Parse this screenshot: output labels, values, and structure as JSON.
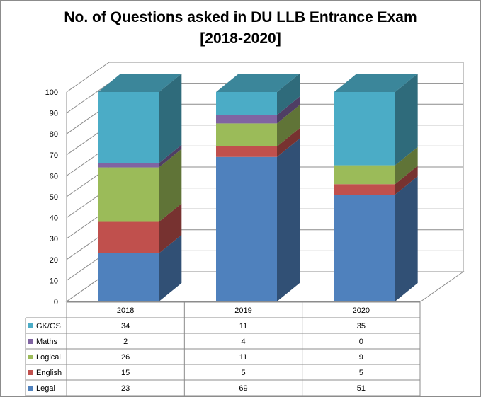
{
  "chart_data": {
    "type": "bar",
    "stacked": true,
    "three_d": true,
    "title_lines": [
      "No. of Questions asked in DU LLB Entrance Exam",
      "[2018-2020]"
    ],
    "categories": [
      "2018",
      "2019",
      "2020"
    ],
    "yticks": [
      "0",
      "10",
      "20",
      "30",
      "40",
      "50",
      "60",
      "70",
      "80",
      "90",
      "100"
    ],
    "ylim": [
      0,
      100
    ],
    "grid": true,
    "legend": "data-table",
    "series": [
      {
        "name": "Legal",
        "values": [
          23,
          69,
          51
        ],
        "color": "#4f81bd",
        "display": [
          "23",
          "69",
          "51"
        ]
      },
      {
        "name": "English",
        "values": [
          15,
          5,
          5
        ],
        "color": "#c0504d",
        "display": [
          "15",
          "5",
          "5"
        ]
      },
      {
        "name": "Logical",
        "values": [
          26,
          11,
          9
        ],
        "color": "#9bbb59",
        "display": [
          "26",
          "11",
          "9"
        ]
      },
      {
        "name": "Maths",
        "values": [
          2,
          4,
          0
        ],
        "color": "#8064a2",
        "display": [
          "2",
          "4",
          "0"
        ]
      },
      {
        "name": "GK/GS",
        "values": [
          34,
          11,
          35
        ],
        "color": "#4bacc6",
        "display": [
          "34",
          "11",
          "35"
        ]
      }
    ]
  }
}
